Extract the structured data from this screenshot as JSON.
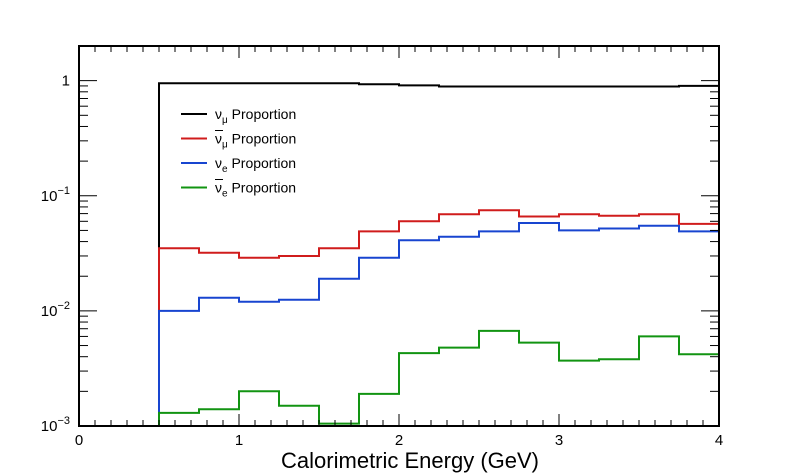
{
  "chart_data": {
    "type": "line",
    "style": "step-histogram",
    "title": "",
    "xlabel": "Calorimetric Energy (GeV)",
    "ylabel": "",
    "xlim": [
      0,
      4
    ],
    "ylim": [
      0.001,
      2
    ],
    "yscale": "log",
    "grid": false,
    "legend_position": "top-left",
    "x_ticks": [
      {
        "value": 0,
        "label": "0"
      },
      {
        "value": 1,
        "label": "1"
      },
      {
        "value": 2,
        "label": "2"
      },
      {
        "value": 3,
        "label": "3"
      },
      {
        "value": 4,
        "label": "4"
      }
    ],
    "y_ticks": [
      {
        "value": 1,
        "label": "1",
        "base": "1",
        "exp": ""
      },
      {
        "value": 0.1,
        "label": "10^-1",
        "base": "10",
        "exp": "−1"
      },
      {
        "value": 0.01,
        "label": "10^-2",
        "base": "10",
        "exp": "−2"
      },
      {
        "value": 0.001,
        "label": "10^-3",
        "base": "10",
        "exp": "−3"
      }
    ],
    "bin_edges": [
      0,
      0.25,
      0.5,
      0.75,
      1.0,
      1.25,
      1.5,
      1.75,
      2.0,
      2.25,
      2.5,
      2.75,
      3.0,
      3.25,
      3.5,
      3.75,
      4.0
    ],
    "series": [
      {
        "name": "ν_μ Proportion",
        "legend": {
          "symbol": "ν",
          "bar": false,
          "sub": "μ",
          "text": " Proportion"
        },
        "color": "#000000",
        "values": [
          0.001,
          0.001,
          0.95,
          0.95,
          0.95,
          0.95,
          0.95,
          0.93,
          0.91,
          0.89,
          0.89,
          0.89,
          0.89,
          0.89,
          0.89,
          0.9
        ]
      },
      {
        "name": "ν̄_μ Proportion",
        "legend": {
          "symbol": "ν",
          "bar": true,
          "sub": "μ",
          "text": " Proportion"
        },
        "color": "#d01c1c",
        "values": [
          0.001,
          0.001,
          0.035,
          0.032,
          0.029,
          0.03,
          0.035,
          0.049,
          0.06,
          0.069,
          0.075,
          0.066,
          0.069,
          0.067,
          0.069,
          0.057
        ]
      },
      {
        "name": "ν_e Proportion",
        "legend": {
          "symbol": "ν",
          "bar": false,
          "sub": "e",
          "text": " Proportion"
        },
        "color": "#1845d0",
        "values": [
          0.001,
          0.001,
          0.01,
          0.013,
          0.012,
          0.0125,
          0.019,
          0.029,
          0.041,
          0.044,
          0.049,
          0.058,
          0.05,
          0.052,
          0.055,
          0.049
        ]
      },
      {
        "name": "ν̄_e Proportion",
        "legend": {
          "symbol": "ν",
          "bar": true,
          "sub": "e",
          "text": " Proportion"
        },
        "color": "#129412",
        "values": [
          0.001,
          0.001,
          0.0013,
          0.0014,
          0.002,
          0.0015,
          0.00105,
          0.0019,
          0.0043,
          0.0048,
          0.0067,
          0.0053,
          0.0037,
          0.0038,
          0.006,
          0.0042
        ]
      }
    ]
  }
}
